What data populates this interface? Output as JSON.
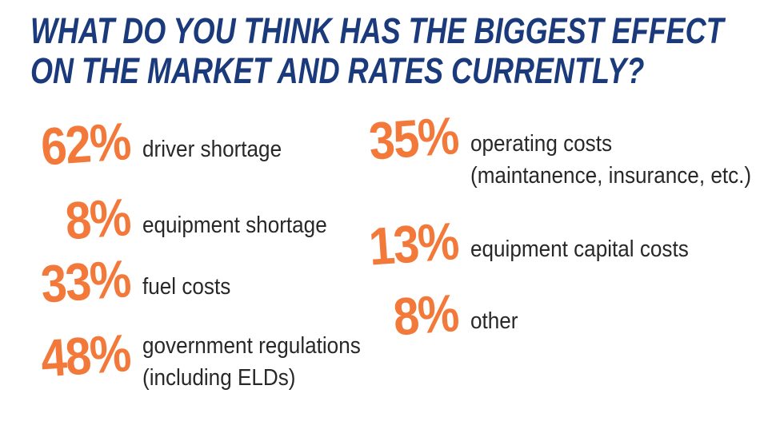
{
  "title": {
    "line1": "What do you think has the biggest effect",
    "line2": "on the market and rates currently?"
  },
  "colors": {
    "accent_orange": "#F3793A",
    "title_navy": "#1A3A7C",
    "label_dark": "#282828",
    "background": "#FFFFFF"
  },
  "chart_data": {
    "type": "table",
    "title": "What do you think has the biggest effect on the market and rates currently?",
    "unit": "%",
    "categories": [
      "driver shortage",
      "equipment shortage",
      "fuel costs",
      "government regulations (including ELDs)",
      "operating costs (maintanence, insurance, etc.)",
      "equipment capital costs",
      "other"
    ],
    "values": [
      62,
      8,
      33,
      48,
      35,
      13,
      8
    ],
    "layout": "two-column stat list, orange handwritten percentages, dark navy handwritten title"
  },
  "columns": {
    "left": [
      {
        "value": "62%",
        "label": "driver shortage",
        "label2": ""
      },
      {
        "value": "8%",
        "label": "equipment shortage",
        "label2": ""
      },
      {
        "value": "33%",
        "label": "fuel costs",
        "label2": ""
      },
      {
        "value": "48%",
        "label": "government regulations",
        "label2": "(including ELDs)"
      }
    ],
    "right": [
      {
        "value": "35%",
        "label": "operating costs",
        "label2": "(maintanence, insurance, etc.)"
      },
      {
        "value": "13%",
        "label": "equipment capital costs",
        "label2": ""
      },
      {
        "value": "8%",
        "label": "other",
        "label2": ""
      }
    ]
  }
}
